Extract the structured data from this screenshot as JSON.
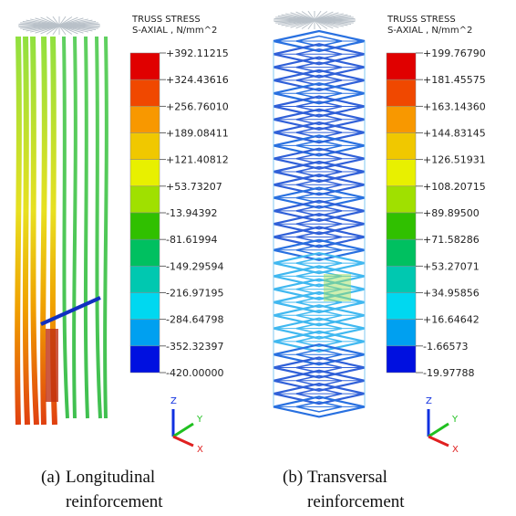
{
  "panels": [
    {
      "legend": {
        "title": "TRUSS STRESS",
        "subtitle": "S-AXIAL , N/mm^2",
        "values": [
          "+392.11215",
          "+324.43616",
          "+256.76010",
          "+189.08411",
          "+121.40812",
          "+53.73207",
          "-13.94392",
          "-81.61994",
          "-149.29594",
          "-216.97195",
          "-284.64798",
          "-352.32397",
          "-420.00000"
        ]
      },
      "axes": [
        "Z",
        "Y",
        "X"
      ],
      "caption": {
        "label": "(a)",
        "line1": "Longitudinal",
        "line2": "reinforcement"
      }
    },
    {
      "legend": {
        "title": "TRUSS STRESS",
        "subtitle": "S-AXIAL , N/mm^2",
        "values": [
          "+199.76790",
          "+181.45575",
          "+163.14360",
          "+144.83145",
          "+126.51931",
          "+108.20715",
          "+89.89500",
          "+71.58286",
          "+53.27071",
          "+34.95856",
          "+16.64642",
          "-1.66573",
          "-19.97788"
        ]
      },
      "axes": [
        "Z",
        "Y",
        "X"
      ],
      "caption": {
        "label": "(b)",
        "line1": "Transversal",
        "line2": "reinforcement"
      }
    }
  ]
}
